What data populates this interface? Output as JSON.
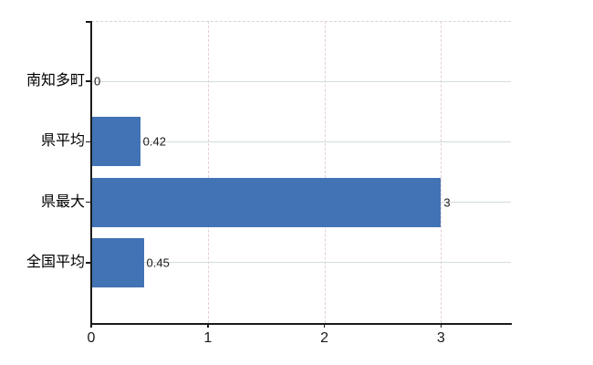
{
  "chart_data": {
    "type": "bar",
    "orientation": "horizontal",
    "title": "",
    "xlabel": "",
    "ylabel": "",
    "categories": [
      "南知多町",
      "県平均",
      "県最大",
      "全国平均"
    ],
    "values": [
      0,
      0.42,
      3,
      0.45
    ],
    "value_labels": [
      "0",
      "0.42",
      "3",
      "0.45"
    ],
    "xlim": [
      0,
      3.6
    ],
    "x_ticks": [
      0,
      1,
      2,
      3
    ],
    "x_tick_labels": [
      "0",
      "1",
      "2",
      "3"
    ],
    "legend": null,
    "grid": {
      "horizontal_style": "solid",
      "vertical_style": "dashed",
      "top_border_style": "dashed"
    },
    "colors": {
      "bar": "#4273b4",
      "grid_horizontal": "#d3ddd5",
      "grid_vertical": "#e3cfdb",
      "grid_top": "#d8d2d6",
      "axis": "#1a1a1a",
      "category_text": "#000000",
      "value_text": "#1a1a1a",
      "tick_text": "#1a1a1a",
      "background": "#ffffff"
    }
  }
}
